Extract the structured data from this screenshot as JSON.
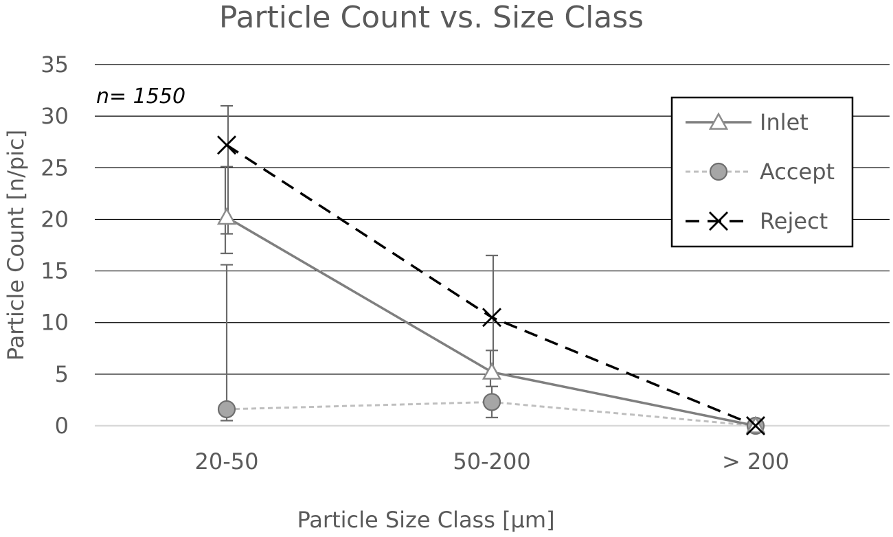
{
  "chart_data": {
    "type": "line",
    "title": "Particle Count vs. Size Class",
    "xlabel": "Particle Size Class [µm]",
    "ylabel": "Particle Count [n/pic]",
    "annotation": "n= 1550",
    "categories": [
      "20-50",
      "50-200",
      "> 200"
    ],
    "ylim": [
      0,
      35
    ],
    "yticks": [
      "0",
      "5",
      "10",
      "15",
      "20",
      "25",
      "30",
      "35"
    ],
    "grid": true,
    "legend_position": "top-right",
    "series": [
      {
        "name": "Inlet",
        "values": [
          20.2,
          5.2,
          0
        ],
        "error_low": [
          16.7,
          3.8,
          0
        ],
        "error_high": [
          25.1,
          7.3,
          0
        ],
        "color": "#7f7f7f",
        "marker": "triangle",
        "line_style": "solid"
      },
      {
        "name": "Accept",
        "values": [
          1.6,
          2.3,
          0
        ],
        "error_low": [
          0.5,
          0.8,
          0
        ],
        "error_high": [
          15.6,
          3.8,
          0
        ],
        "color": "#bfbfbf",
        "marker": "circle",
        "line_style": "dotted"
      },
      {
        "name": "Reject",
        "values": [
          27.2,
          10.5,
          0
        ],
        "error_low": [
          18.6,
          4.6,
          0
        ],
        "error_high": [
          31.0,
          16.5,
          0
        ],
        "color": "#000000",
        "marker": "x",
        "line_style": "dashed"
      }
    ]
  }
}
